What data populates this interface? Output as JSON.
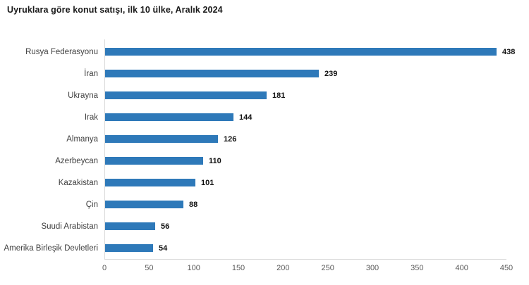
{
  "chart_data": {
    "type": "bar",
    "orientation": "horizontal",
    "title": "Uyruklara göre konut satışı, ilk 10 ülke, Aralık 2024",
    "categories": [
      "Rusya Federasyonu",
      "İran",
      "Ukrayna",
      "Irak",
      "Almanya",
      "Azerbeycan",
      "Kazakistan",
      "Çin",
      "Suudi Arabistan",
      "Amerika Birleşik Devletleri"
    ],
    "values": [
      438,
      239,
      181,
      144,
      126,
      110,
      101,
      88,
      56,
      54
    ],
    "value_labels_shown": true,
    "xlabel": "",
    "ylabel": "",
    "xlim": [
      0,
      450
    ],
    "xticks": [
      0,
      50,
      100,
      150,
      200,
      250,
      300,
      350,
      400,
      450
    ],
    "grid": false,
    "legend": "none",
    "bar_color": "#2e79b9",
    "axis_line_color": "#d9d9d9",
    "tick_label_color": "#595959",
    "category_label_color": "#3f3f3f",
    "value_label_color": "#111111",
    "title_color": "#1a1a1a",
    "background_color": "#ffffff"
  }
}
